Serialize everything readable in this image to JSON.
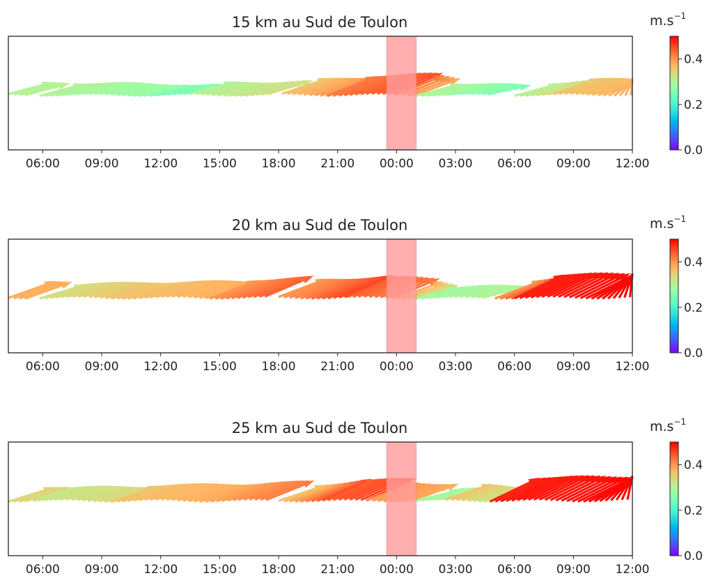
{
  "chart_data": [
    {
      "type": "quiver",
      "title": "15 km au Sud de Toulon",
      "x_tick_labels": [
        "06:00",
        "09:00",
        "12:00",
        "15:00",
        "18:00",
        "21:00",
        "00:00",
        "03:00",
        "06:00",
        "09:00",
        "12:00"
      ],
      "xlim": [
        "04:15",
        "12:00 (+1 day)"
      ],
      "highlight_span": {
        "start": "23:30",
        "end": "01:00",
        "color": "#ff9c9c"
      },
      "colorbar": {
        "label": "m.s",
        "label_superscript": "−1",
        "ticks": [
          "0.0",
          "0.2",
          "0.4"
        ],
        "range": [
          0,
          0.5
        ],
        "colormap": "rainbow"
      },
      "segments": [
        {
          "start": "04:15",
          "end": "05:15",
          "speed": [
            0.3,
            0.3
          ]
        },
        {
          "start": "05:50",
          "end": "11:30",
          "speed": [
            0.3,
            0.27
          ]
        },
        {
          "start": "11:30",
          "end": "13:30",
          "speed": [
            0.25,
            0.25
          ]
        },
        {
          "start": "13:30",
          "end": "17:30",
          "speed": [
            0.3,
            0.33
          ]
        },
        {
          "start": "18:10",
          "end": "20:30",
          "speed": [
            0.36,
            0.4
          ]
        },
        {
          "start": "20:30",
          "end": "00:00",
          "speed": [
            0.42,
            0.45
          ]
        },
        {
          "start": "00:00",
          "end": "01:00",
          "speed": [
            0.42,
            0.38
          ]
        },
        {
          "start": "01:00",
          "end": "04:50",
          "speed": [
            0.3,
            0.25
          ]
        },
        {
          "start": "06:00",
          "end": "08:00",
          "speed": [
            0.3,
            0.34
          ]
        },
        {
          "start": "08:00",
          "end": "12:00",
          "speed": [
            0.36,
            0.38
          ]
        }
      ]
    },
    {
      "type": "quiver",
      "title": "20 km au Sud de Toulon",
      "x_tick_labels": [
        "06:00",
        "09:00",
        "12:00",
        "15:00",
        "18:00",
        "21:00",
        "00:00",
        "03:00",
        "06:00",
        "09:00",
        "12:00"
      ],
      "xlim": [
        "04:15",
        "12:00 (+1 day)"
      ],
      "highlight_span": {
        "start": "23:30",
        "end": "01:00",
        "color": "#ff9c9c"
      },
      "colorbar": {
        "label": "m.s",
        "label_superscript": "−1",
        "ticks": [
          "0.0",
          "0.2",
          "0.4"
        ],
        "range": [
          0,
          0.5
        ],
        "colormap": "rainbow"
      },
      "segments": [
        {
          "start": "04:15",
          "end": "05:15",
          "speed": [
            0.38,
            0.38
          ]
        },
        {
          "start": "05:50",
          "end": "09:30",
          "speed": [
            0.33,
            0.36
          ]
        },
        {
          "start": "09:30",
          "end": "14:30",
          "speed": [
            0.36,
            0.38
          ]
        },
        {
          "start": "14:30",
          "end": "17:30",
          "speed": [
            0.4,
            0.44
          ]
        },
        {
          "start": "18:00",
          "end": "21:30",
          "speed": [
            0.4,
            0.46
          ]
        },
        {
          "start": "21:30",
          "end": "00:00",
          "speed": [
            0.44,
            0.42
          ]
        },
        {
          "start": "00:00",
          "end": "01:00",
          "speed": [
            0.38,
            0.32
          ]
        },
        {
          "start": "01:00",
          "end": "04:30",
          "speed": [
            0.28,
            0.3
          ]
        },
        {
          "start": "05:00",
          "end": "06:00",
          "speed": [
            0.4,
            0.45
          ]
        },
        {
          "start": "06:00",
          "end": "12:00",
          "speed": [
            0.48,
            0.5
          ]
        }
      ]
    },
    {
      "type": "quiver",
      "title": "25 km au Sud de Toulon",
      "x_tick_labels": [
        "06:00",
        "09:00",
        "12:00",
        "15:00",
        "18:00",
        "21:00",
        "00:00",
        "03:00",
        "06:00",
        "09:00",
        "12:00"
      ],
      "xlim": [
        "04:15",
        "12:00 (+1 day)"
      ],
      "highlight_span": {
        "start": "23:30",
        "end": "01:00",
        "color": "#ff9c9c"
      },
      "colorbar": {
        "label": "m.s",
        "label_superscript": "−1",
        "ticks": [
          "0.0",
          "0.2",
          "0.4"
        ],
        "range": [
          0,
          0.5
        ],
        "colormap": "rainbow"
      },
      "segments": [
        {
          "start": "04:15",
          "end": "05:15",
          "speed": [
            0.34,
            0.34
          ]
        },
        {
          "start": "05:30",
          "end": "09:30",
          "speed": [
            0.32,
            0.34
          ]
        },
        {
          "start": "09:30",
          "end": "14:00",
          "speed": [
            0.36,
            0.38
          ]
        },
        {
          "start": "14:00",
          "end": "17:30",
          "speed": [
            0.38,
            0.42
          ]
        },
        {
          "start": "18:00",
          "end": "20:30",
          "speed": [
            0.36,
            0.46
          ]
        },
        {
          "start": "20:30",
          "end": "22:30",
          "speed": [
            0.44,
            0.46
          ]
        },
        {
          "start": "22:30",
          "end": "01:00",
          "speed": [
            0.4,
            0.38
          ]
        },
        {
          "start": "01:00",
          "end": "02:30",
          "speed": [
            0.28,
            0.3
          ]
        },
        {
          "start": "02:30",
          "end": "04:45",
          "speed": [
            0.36,
            0.32
          ]
        },
        {
          "start": "04:45",
          "end": "12:00",
          "speed": [
            0.48,
            0.5
          ]
        }
      ]
    }
  ]
}
